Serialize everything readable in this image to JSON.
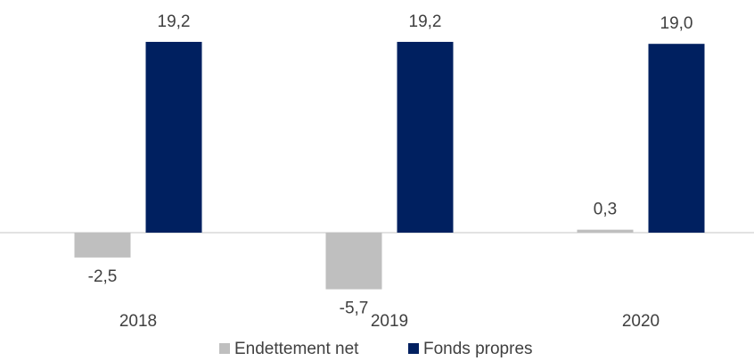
{
  "chart_data": {
    "type": "bar",
    "categories": [
      "2018",
      "2019",
      "2020"
    ],
    "series": [
      {
        "name": "Endettement net",
        "color": "#bfbfbf",
        "values": [
          -2.5,
          -5.7,
          0.3
        ],
        "value_labels": [
          "-2,5",
          "-5,7",
          "0,3"
        ]
      },
      {
        "name": "Fonds propres",
        "color": "#002060",
        "values": [
          19.2,
          19.2,
          19.0
        ],
        "value_labels": [
          "19,2",
          "19,2",
          "19,0"
        ]
      }
    ],
    "ylim": [
      -8,
      21
    ],
    "legend": "bottom"
  }
}
